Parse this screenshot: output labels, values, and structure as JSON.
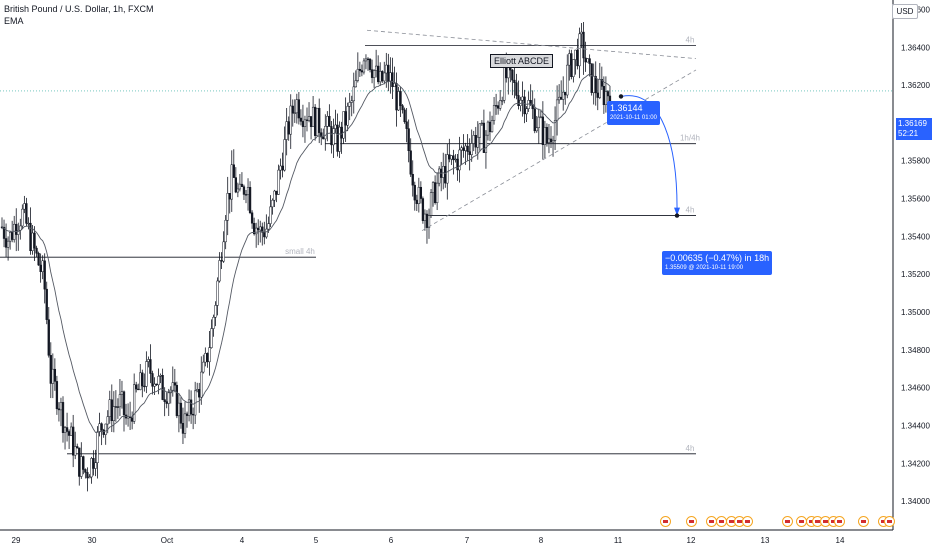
{
  "header": {
    "symbol_line": "British Pound / U.S. Dollar, 1h, FXCM",
    "indicator": "EMA",
    "currency_button": "USD"
  },
  "chart_data": {
    "type": "candlestick",
    "title": "British Pound / U.S. Dollar, 1h, FXCM",
    "y_axis": {
      "currency": "USD",
      "range": [
        1.339,
        1.3665
      ],
      "ticks": [
        "1.36600",
        "1.36400",
        "1.36200",
        "1.36000",
        "1.35800",
        "1.35600",
        "1.35400",
        "1.35200",
        "1.35000",
        "1.34800",
        "1.34600",
        "1.34400",
        "1.34200",
        "1.34000"
      ],
      "top_partial_tick": "1.36600",
      "scale": "linear"
    },
    "x_axis": {
      "tick_labels": [
        "29",
        "30",
        "Oct",
        "4",
        "5",
        "6",
        "7",
        "8",
        "11",
        "12",
        "13",
        "14"
      ]
    },
    "grid": false,
    "legend": "top-left",
    "current_price": {
      "value": "1.36169",
      "countdown": "52:21"
    },
    "indicators": [
      {
        "name": "EMA"
      }
    ],
    "annotations": {
      "pattern_label": "Elliott ABCDE",
      "point_label": {
        "price": "1.36144",
        "time": "2021-10-11 01:00"
      },
      "projection": {
        "change": "−0.00635 (−0.47%) in 18h",
        "target": "1.35509 @ 2021-10-11  19:00"
      },
      "horizontal_levels": [
        {
          "price": 1.3641,
          "label": "4h"
        },
        {
          "price": 1.3589,
          "label": "1h/4h"
        },
        {
          "price": 1.3551,
          "label": "4h"
        },
        {
          "price": 1.3529,
          "label": "small 4h"
        },
        {
          "price": 1.3425,
          "label": "4h"
        }
      ]
    },
    "series_path": [
      [
        1.3545,
        1.3538
      ],
      [
        1.3548,
        1.3552
      ],
      [
        1.354,
        1.3528
      ],
      [
        1.3518,
        1.3465
      ],
      [
        1.3455,
        1.344
      ],
      [
        1.3432,
        1.342
      ],
      [
        1.3415,
        1.3422
      ],
      [
        1.3438,
        1.3445
      ],
      [
        1.345,
        1.3452
      ],
      [
        1.344,
        1.3455
      ],
      [
        1.3462,
        1.347
      ],
      [
        1.3465,
        1.3458
      ],
      [
        1.346,
        1.3452
      ],
      [
        1.344,
        1.3448
      ],
      [
        1.3458,
        1.347
      ],
      [
        1.349,
        1.352
      ],
      [
        1.3555,
        1.3572
      ],
      [
        1.356,
        1.357
      ],
      [
        1.3548,
        1.3542
      ],
      [
        1.3545,
        1.356
      ],
      [
        1.358,
        1.3598
      ],
      [
        1.3612,
        1.3606
      ],
      [
        1.3605,
        1.36
      ],
      [
        1.3598,
        1.3595
      ],
      [
        1.359,
        1.36
      ],
      [
        1.361,
        1.3625
      ],
      [
        1.364,
        1.363
      ],
      [
        1.362,
        1.3626
      ],
      [
        1.362,
        1.3605
      ],
      [
        1.359,
        1.3568
      ],
      [
        1.3555,
        1.3552
      ],
      [
        1.3565,
        1.3572
      ],
      [
        1.3578,
        1.358
      ],
      [
        1.3585,
        1.359
      ],
      [
        1.3593,
        1.3592
      ],
      [
        1.36,
        1.3612
      ],
      [
        1.3625,
        1.362
      ],
      [
        1.3615,
        1.3612
      ],
      [
        1.3605,
        1.3598
      ],
      [
        1.359,
        1.36
      ],
      [
        1.3612,
        1.3628
      ],
      [
        1.3635,
        1.3642
      ],
      [
        1.3625,
        1.3618
      ],
      [
        1.3615,
        1.3617
      ]
    ]
  },
  "events_bar": {
    "count": 22
  }
}
